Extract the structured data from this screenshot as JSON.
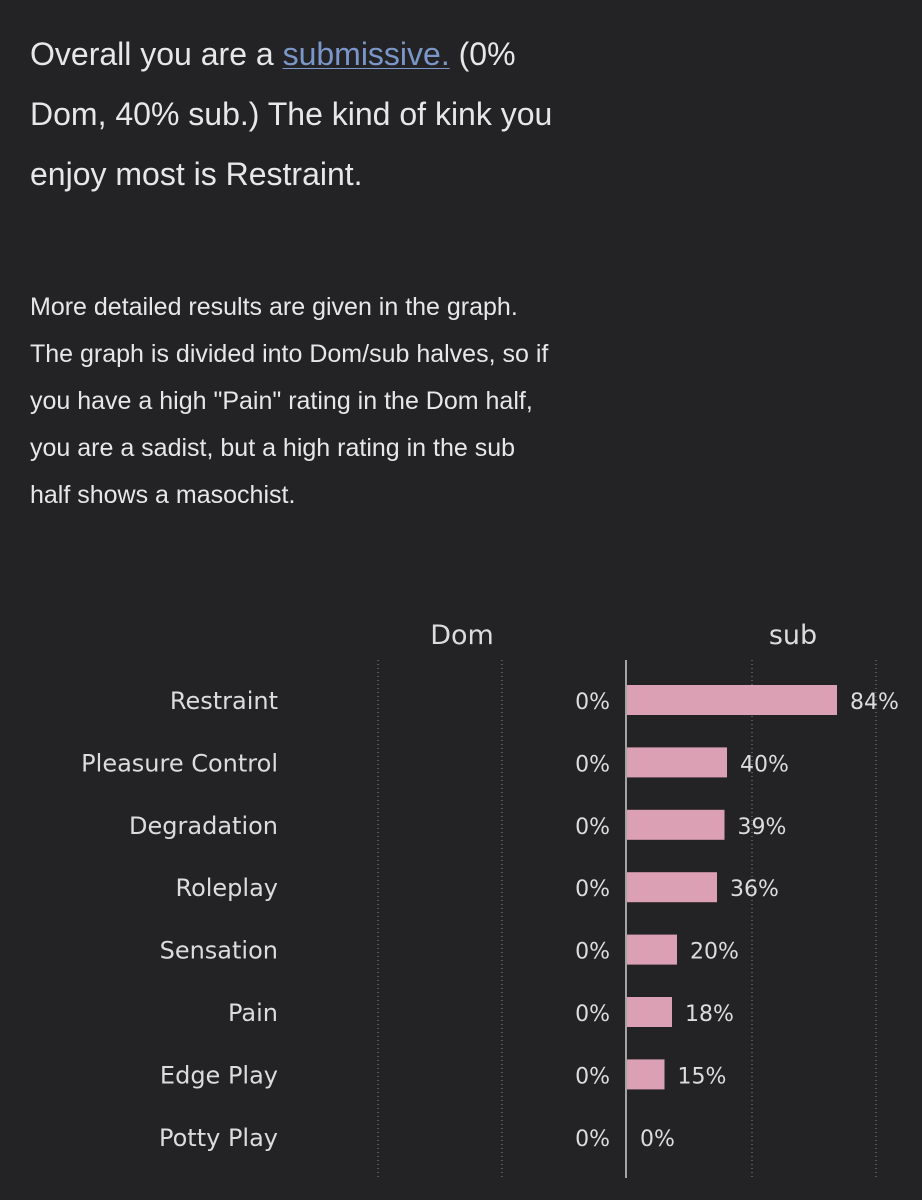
{
  "summary": {
    "prefix": "Overall you are a ",
    "role_link": "submissive.",
    "rest": " (0% Dom, 40% sub.) The kind of kink you enjoy most is Restraint."
  },
  "detail": {
    "text": "More detailed results are given in the graph. The graph is divided into Dom/sub halves, so if you have a high \"Pain\" rating in the Dom half, you are a sadist, but a high rating in the sub half shows a masochist."
  },
  "colors": {
    "background": "#232325",
    "bar": "#dca0b5",
    "link": "#7b96c8"
  },
  "chart_data": {
    "type": "bar",
    "orientation": "horizontal",
    "panels": [
      "Dom",
      "sub"
    ],
    "categories": [
      "Restraint",
      "Pleasure Control",
      "Degradation",
      "Roleplay",
      "Sensation",
      "Pain",
      "Edge Play",
      "Potty Play"
    ],
    "series": [
      {
        "name": "Dom",
        "values": [
          0,
          0,
          0,
          0,
          0,
          0,
          0,
          0
        ],
        "labels": [
          "0%",
          "0%",
          "0%",
          "0%",
          "0%",
          "0%",
          "0%",
          "0%"
        ]
      },
      {
        "name": "sub",
        "values": [
          84,
          40,
          39,
          36,
          20,
          18,
          15,
          0
        ],
        "labels": [
          "84%",
          "40%",
          "39%",
          "36%",
          "20%",
          "18%",
          "15%",
          "0%"
        ]
      }
    ],
    "xlim": [
      0,
      100
    ],
    "grid": "vertical dotted"
  }
}
